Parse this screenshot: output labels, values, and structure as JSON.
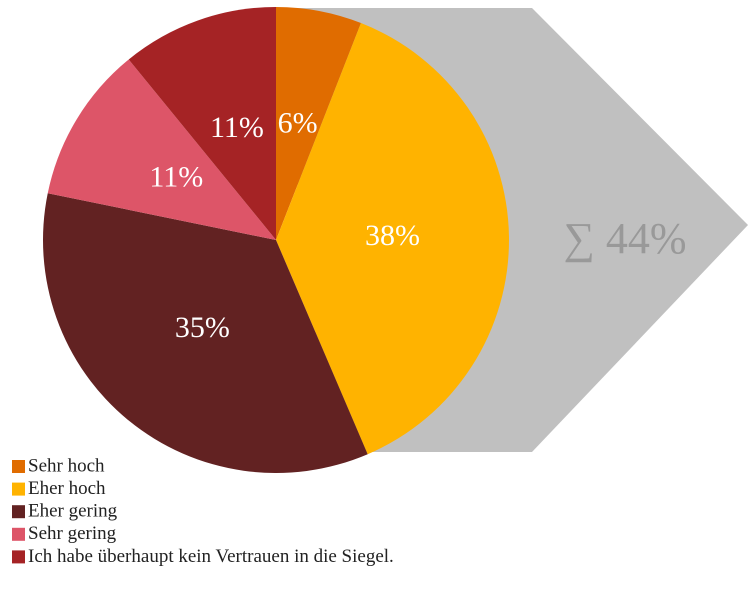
{
  "chart_data": {
    "type": "pie",
    "categories": [
      "Sehr hoch",
      "Eher hoch",
      "Eher gering",
      "Sehr gering",
      "Ich habe überhaupt kein Vertrauen in die Siegel."
    ],
    "values": [
      6,
      38,
      35,
      11,
      11
    ],
    "value_labels": [
      "6%",
      "38%",
      "35%",
      "11%",
      "11%"
    ],
    "colors": [
      "#e06c00",
      "#ffb300",
      "#622222",
      "#dd5568",
      "#a52325"
    ],
    "annotation": "∑ 44%"
  }
}
